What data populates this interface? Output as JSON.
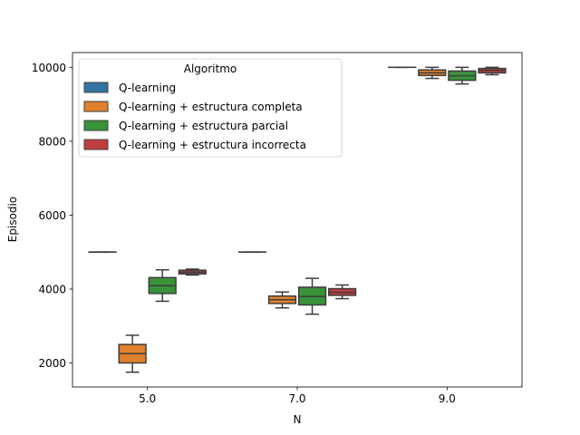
{
  "chart_data": {
    "type": "box",
    "xlabel": "N",
    "ylabel": "Episodio",
    "categories": [
      "5.0",
      "7.0",
      "9.0"
    ],
    "ylim": [
      1350,
      10400
    ],
    "yticks": [
      2000,
      4000,
      6000,
      8000,
      10000
    ],
    "legend": {
      "title": "Algoritmo",
      "placement": "top-left"
    },
    "series": [
      {
        "name": "Q-learning",
        "color": "#3274a1",
        "boxes": [
          {
            "min": 5000,
            "q1": 5000,
            "median": 5000,
            "q3": 5000,
            "max": 5000
          },
          {
            "min": 5000,
            "q1": 5000,
            "median": 5000,
            "q3": 5000,
            "max": 5000
          },
          {
            "min": 10000,
            "q1": 10000,
            "median": 10000,
            "q3": 10000,
            "max": 10000
          }
        ]
      },
      {
        "name": "Q-learning + estructura completa",
        "color": "#e1812c",
        "boxes": [
          {
            "min": 1750,
            "q1": 2000,
            "median": 2250,
            "q3": 2500,
            "max": 2750
          },
          {
            "min": 3490,
            "q1": 3610,
            "median": 3710,
            "q3": 3810,
            "max": 3920
          },
          {
            "min": 9700,
            "q1": 9780,
            "median": 9850,
            "q3": 9930,
            "max": 10000
          }
        ]
      },
      {
        "name": "Q-learning + estructura parcial",
        "color": "#3a923a",
        "boxes": [
          {
            "min": 3670,
            "q1": 3880,
            "median": 4090,
            "q3": 4310,
            "max": 4520
          },
          {
            "min": 3320,
            "q1": 3570,
            "median": 3800,
            "q3": 4050,
            "max": 4290
          },
          {
            "min": 9550,
            "q1": 9650,
            "median": 9770,
            "q3": 9900,
            "max": 10000
          }
        ]
      },
      {
        "name": "Q-learning + estructura incorrecta",
        "color": "#c03d3e",
        "boxes": [
          {
            "min": 4380,
            "q1": 4410,
            "median": 4460,
            "q3": 4510,
            "max": 4540
          },
          {
            "min": 3740,
            "q1": 3830,
            "median": 3910,
            "q3": 4010,
            "max": 4110
          },
          {
            "min": 9800,
            "q1": 9850,
            "median": 9920,
            "q3": 9970,
            "max": 10000
          }
        ]
      }
    ]
  }
}
